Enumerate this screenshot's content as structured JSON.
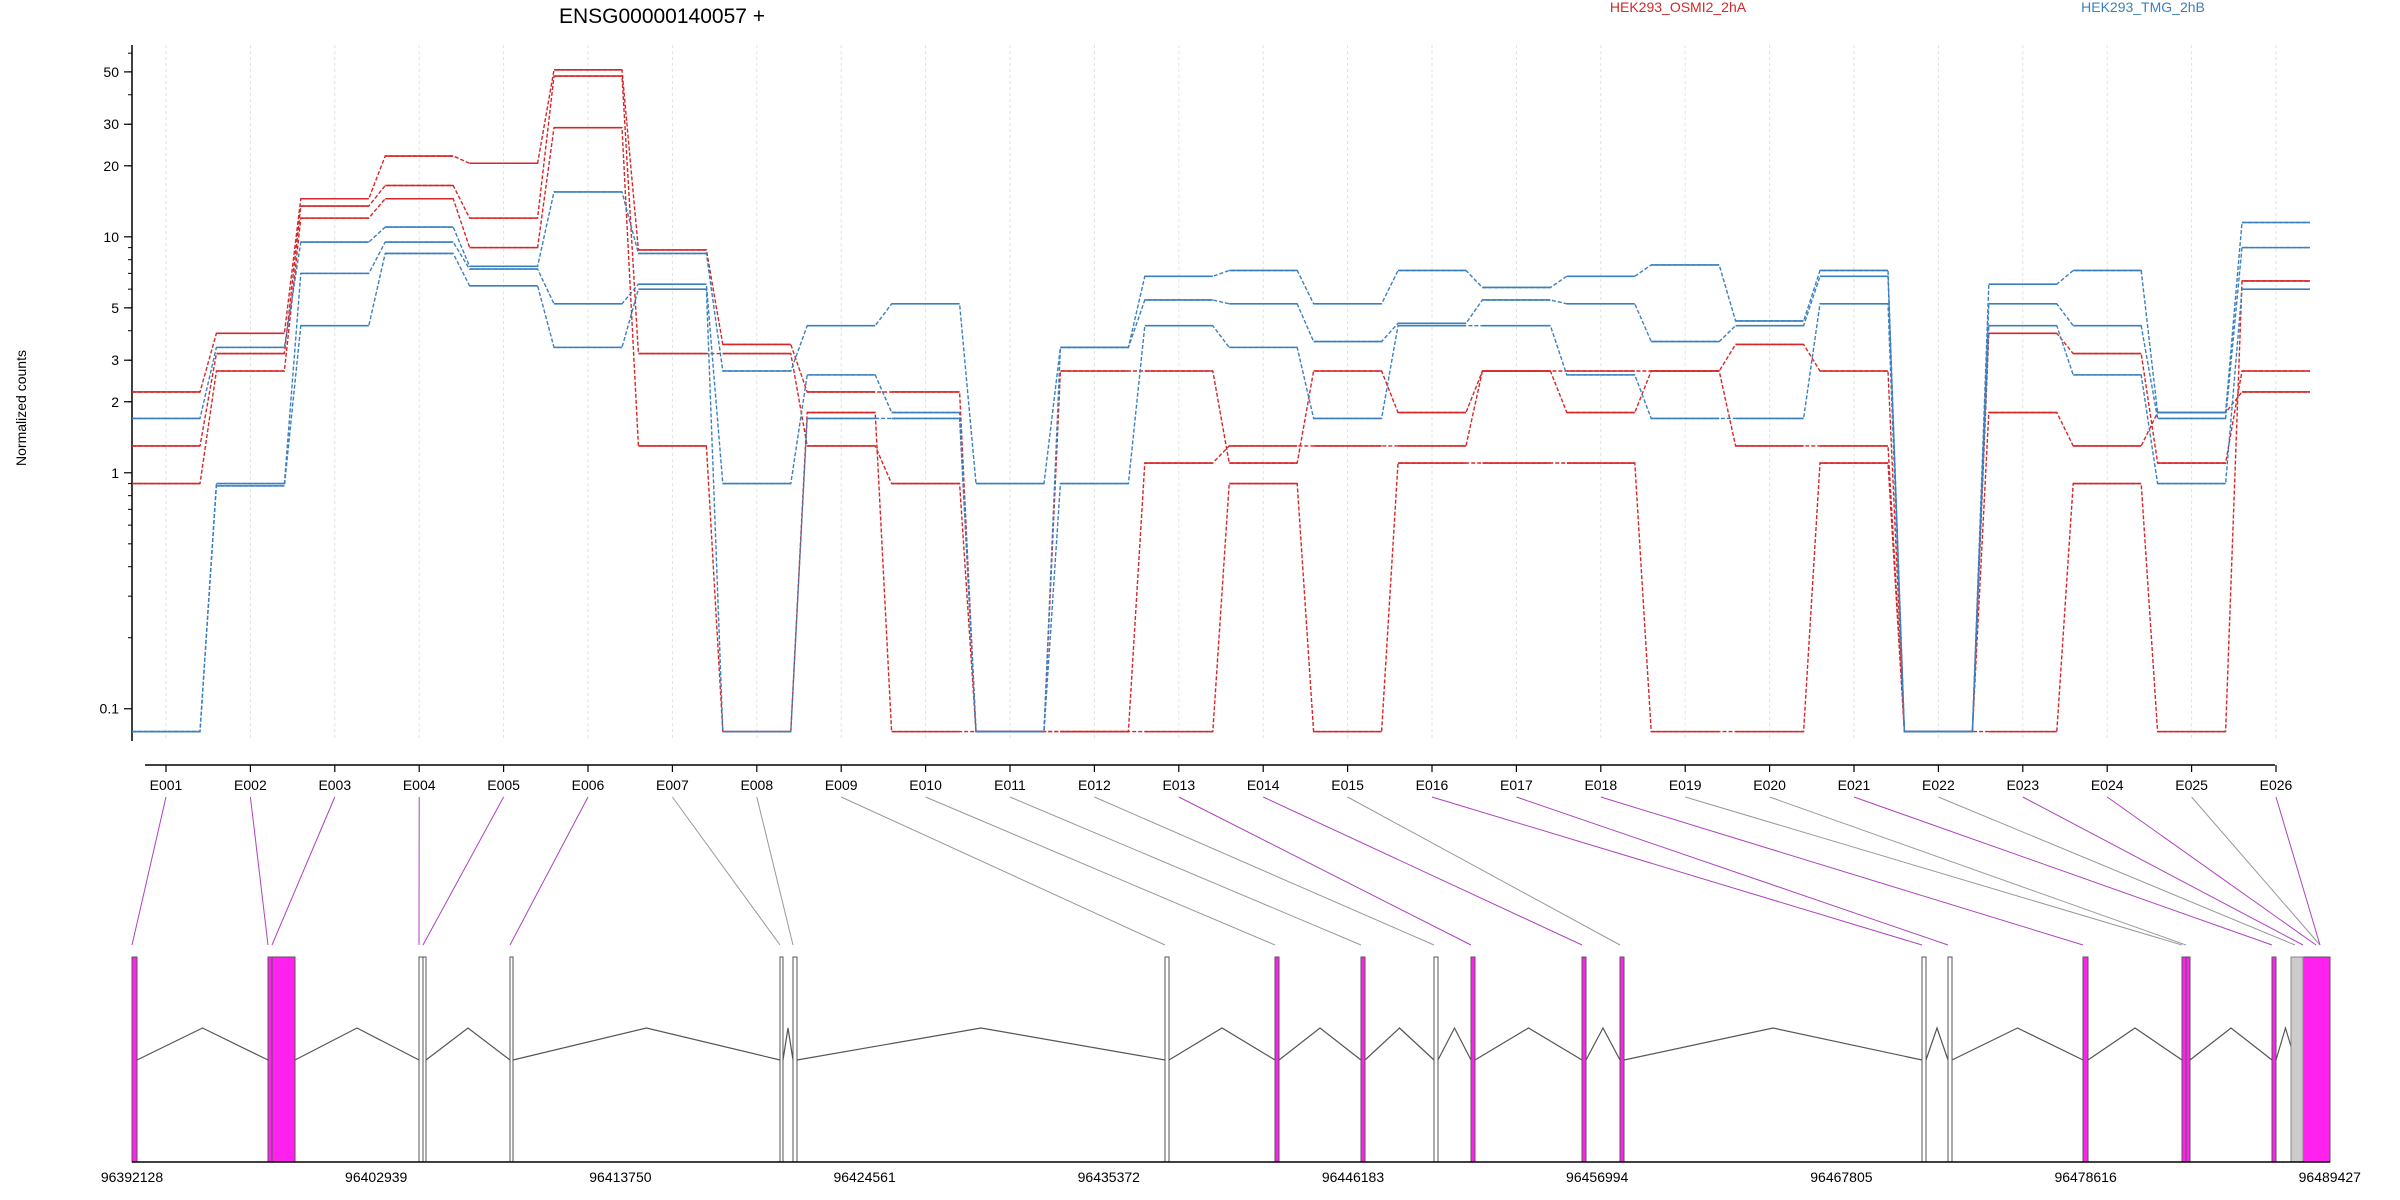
{
  "chart_data": {
    "type": "line",
    "title": "ENSG00000140057 +",
    "ylabel": "Normalized counts",
    "xlabel": "",
    "yscale": "log",
    "ylim": [
      0.075,
      60
    ],
    "grid": "vertical dotted lines at each exon",
    "legend_placement": "top-right",
    "y_ticks": [
      0.1,
      1,
      2,
      3,
      5,
      10,
      20,
      30,
      50
    ],
    "y_tick_labels": [
      "0.1",
      "1",
      "2",
      "3",
      "5",
      "10",
      "20",
      "30",
      "50"
    ],
    "categories": [
      "E001",
      "E002",
      "E003",
      "E004",
      "E005",
      "E006",
      "E007",
      "E008",
      "E009",
      "E010",
      "E011",
      "E012",
      "E013",
      "E014",
      "E015",
      "E016",
      "E017",
      "E018",
      "E019",
      "E020",
      "E021",
      "E022",
      "E023",
      "E024",
      "E025",
      "E026"
    ],
    "colors": {
      "HEK293_OSMI2_2hA": "#d62728",
      "HEK293_TMG_2hB": "#3a80c0"
    },
    "legend": [
      {
        "name": "HEK293_OSMI2_2hA",
        "color": "#d62728"
      },
      {
        "name": "HEK293_TMG_2hB",
        "color": "#3a80c0"
      }
    ],
    "series": [
      {
        "group": "HEK293_OSMI2_2hA",
        "values": [
          2.2,
          3.9,
          14.5,
          22,
          20.5,
          51,
          8.8,
          3.5,
          2.2,
          2.2,
          0.08,
          2.7,
          2.7,
          1.1,
          2.7,
          1.8,
          2.7,
          2.7,
          2.7,
          3.5,
          2.7,
          0.08,
          3.9,
          3.2,
          1.1,
          2.7
        ]
      },
      {
        "group": "HEK293_OSMI2_2hA",
        "values": [
          1.3,
          3.2,
          13.5,
          16.5,
          12,
          48,
          3.2,
          3.2,
          1.3,
          0.9,
          0.08,
          0.08,
          1.1,
          1.3,
          1.3,
          1.3,
          2.7,
          1.8,
          2.7,
          1.3,
          1.3,
          0.08,
          1.8,
          1.3,
          1.8,
          2.2
        ]
      },
      {
        "group": "HEK293_OSMI2_2hA",
        "values": [
          0.9,
          2.7,
          12,
          14.5,
          9,
          29,
          1.3,
          0.08,
          1.8,
          0.08,
          0.08,
          0.08,
          0.08,
          0.9,
          0.08,
          1.1,
          1.1,
          1.1,
          0.08,
          0.08,
          1.1,
          0.08,
          0.08,
          0.9,
          0.08,
          6.5
        ]
      },
      {
        "group": "HEK293_TMG_2hB",
        "values": [
          1.7,
          3.4,
          9.5,
          11,
          7.5,
          15.5,
          8.5,
          2.7,
          4.2,
          5.2,
          0.9,
          3.4,
          6.8,
          7.2,
          5.2,
          7.2,
          6.1,
          6.8,
          7.6,
          4.4,
          7.2,
          0.08,
          6.3,
          7.2,
          1.8,
          11.5
        ]
      },
      {
        "group": "HEK293_TMG_2hB",
        "values": [
          0.08,
          0.9,
          7,
          9.5,
          7.3,
          5.2,
          6.3,
          0.9,
          2.6,
          1.8,
          0.08,
          3.4,
          5.4,
          5.2,
          3.6,
          4.3,
          5.4,
          5.2,
          3.6,
          4.2,
          6.8,
          0.08,
          5.2,
          4.2,
          1.7,
          9
        ]
      },
      {
        "group": "HEK293_TMG_2hB",
        "values": [
          0.08,
          0.88,
          4.2,
          8.5,
          6.2,
          3.4,
          6,
          0.08,
          1.7,
          1.7,
          0.08,
          0.9,
          4.2,
          3.4,
          1.7,
          4.2,
          4.2,
          2.6,
          1.7,
          1.7,
          5.2,
          0.08,
          4.2,
          2.6,
          0.9,
          6
        ]
      }
    ],
    "gene_model": {
      "coordinate_labels": [
        "96392128",
        "96402939",
        "96413750",
        "96424561",
        "96435372",
        "96446183",
        "96456994",
        "96467805",
        "96478616",
        "96489427"
      ],
      "exon_colors": {
        "differential": "#ff22ee",
        "other": "#ffffff",
        "intron_line": "#555555",
        "connector_differential": "#b040c0",
        "connector_other": "#999999"
      },
      "exon_differential": [
        true,
        true,
        true,
        true,
        true,
        true,
        false,
        false,
        false,
        false,
        false,
        false,
        true,
        true,
        false,
        true,
        true,
        true,
        false,
        false,
        true,
        false,
        true,
        true,
        false,
        true
      ]
    }
  }
}
